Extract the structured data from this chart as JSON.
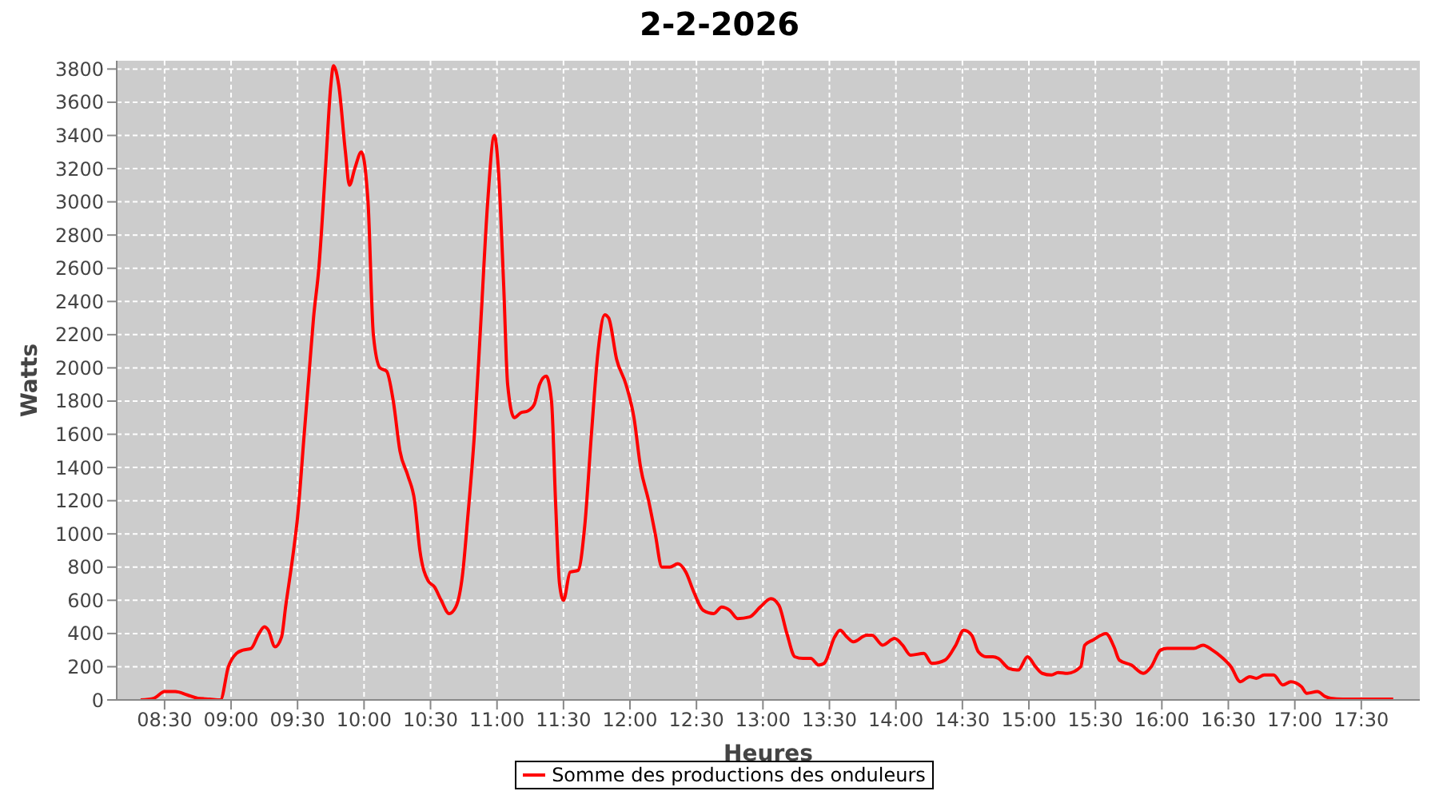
{
  "chart_data": {
    "type": "line",
    "title": "2-2-2026",
    "xlabel": "Heures",
    "ylabel": "Watts",
    "x": [
      8.32,
      8.42,
      8.5,
      8.58,
      8.67,
      8.75,
      8.84,
      8.92,
      8.98,
      9.04,
      9.09,
      9.15,
      9.21,
      9.25,
      9.28,
      9.33,
      9.38,
      9.41,
      9.47,
      9.5,
      9.55,
      9.59,
      9.62,
      9.66,
      9.71,
      9.75,
      9.77,
      9.81,
      9.86,
      9.89,
      9.93,
      9.98,
      10.03,
      10.07,
      10.12,
      10.17,
      10.22,
      10.27,
      10.33,
      10.38,
      10.42,
      10.48,
      10.53,
      10.58,
      10.64,
      10.69,
      10.74,
      10.78,
      10.83,
      10.88,
      10.93,
      10.98,
      11.01,
      11.05,
      11.08,
      11.13,
      11.18,
      11.23,
      11.28,
      11.32,
      11.37,
      11.41,
      11.44,
      11.47,
      11.5,
      11.55,
      11.61,
      11.66,
      11.71,
      11.76,
      11.81,
      11.84,
      11.9,
      11.97,
      12.03,
      12.08,
      12.14,
      12.19,
      12.24,
      12.3,
      12.36,
      12.42,
      12.48,
      12.55,
      12.63,
      12.69,
      12.75,
      12.81,
      12.9,
      12.98,
      13.06,
      13.12,
      13.18,
      13.24,
      13.3,
      13.36,
      13.42,
      13.46,
      13.54,
      13.58,
      13.63,
      13.68,
      13.78,
      13.82,
      13.9,
      13.99,
      14.05,
      14.11,
      14.21,
      14.27,
      14.37,
      14.45,
      14.51,
      14.57,
      14.62,
      14.68,
      14.73,
      14.77,
      14.85,
      14.92,
      14.99,
      15.05,
      15.1,
      15.17,
      15.22,
      15.29,
      15.39,
      15.42,
      15.48,
      15.58,
      15.64,
      15.68,
      15.77,
      15.86,
      15.92,
      15.99,
      16.04,
      16.17,
      16.24,
      16.31,
      16.38,
      16.46,
      16.52,
      16.59,
      16.66,
      16.71,
      16.77,
      16.84,
      16.91,
      16.97,
      17.05,
      17.09,
      17.17,
      17.23,
      17.27,
      17.36,
      17.5,
      17.6,
      17.74
    ],
    "series": [
      {
        "name": "Somme des productions des onduleurs",
        "color": "#ff0000",
        "values": [
          0,
          10,
          50,
          50,
          30,
          10,
          5,
          0,
          200,
          280,
          300,
          310,
          400,
          440,
          420,
          320,
          380,
          560,
          900,
          1100,
          1600,
          2000,
          2300,
          2600,
          3200,
          3700,
          3820,
          3700,
          3300,
          3100,
          3200,
          3300,
          3000,
          2200,
          2000,
          1980,
          1800,
          1500,
          1350,
          1200,
          900,
          720,
          680,
          600,
          520,
          560,
          750,
          1100,
          1600,
          2300,
          3000,
          3400,
          3200,
          2500,
          1900,
          1700,
          1730,
          1740,
          1780,
          1900,
          1950,
          1800,
          1200,
          700,
          600,
          770,
          780,
          1050,
          1600,
          2100,
          2320,
          2300,
          2050,
          1900,
          1700,
          1400,
          1200,
          1000,
          800,
          800,
          820,
          770,
          650,
          540,
          520,
          560,
          540,
          490,
          500,
          560,
          610,
          570,
          400,
          260,
          250,
          250,
          210,
          220,
          380,
          420,
          380,
          350,
          390,
          390,
          330,
          370,
          330,
          270,
          280,
          220,
          240,
          330,
          420,
          390,
          290,
          260,
          260,
          250,
          190,
          180,
          260,
          200,
          160,
          150,
          165,
          160,
          200,
          330,
          360,
          400,
          320,
          240,
          210,
          160,
          200,
          300,
          310,
          310,
          310,
          330,
          300,
          250,
          200,
          110,
          140,
          130,
          150,
          150,
          90,
          110,
          80,
          40,
          50,
          20,
          10,
          5,
          5,
          5,
          5
        ]
      }
    ],
    "xlim": [
      8.14,
      17.94
    ],
    "xticks": [
      {
        "value": 8.5,
        "label": "08:30"
      },
      {
        "value": 9,
        "label": "09:00"
      },
      {
        "value": 9.5,
        "label": "09:30"
      },
      {
        "value": 10,
        "label": "10:00"
      },
      {
        "value": 10.5,
        "label": "10:30"
      },
      {
        "value": 11,
        "label": "11:00"
      },
      {
        "value": 11.5,
        "label": "11:30"
      },
      {
        "value": 12,
        "label": "12:00"
      },
      {
        "value": 12.5,
        "label": "12:30"
      },
      {
        "value": 13,
        "label": "13:00"
      },
      {
        "value": 13.5,
        "label": "13:30"
      },
      {
        "value": 14,
        "label": "14:00"
      },
      {
        "value": 14.5,
        "label": "14:30"
      },
      {
        "value": 15,
        "label": "15:00"
      },
      {
        "value": 15.5,
        "label": "15:30"
      },
      {
        "value": 16,
        "label": "16:00"
      },
      {
        "value": 16.5,
        "label": "16:30"
      },
      {
        "value": 17,
        "label": "17:00"
      },
      {
        "value": 17.5,
        "label": "17:30"
      }
    ],
    "ylim": [
      0,
      3850
    ],
    "yticks": [
      0,
      200,
      400,
      600,
      800,
      1000,
      1200,
      1400,
      1600,
      1800,
      2000,
      2200,
      2400,
      2600,
      2800,
      3000,
      3200,
      3400,
      3600,
      3800
    ],
    "grid": true,
    "legend": "bottom",
    "marker": "none",
    "line_style": "solid"
  }
}
